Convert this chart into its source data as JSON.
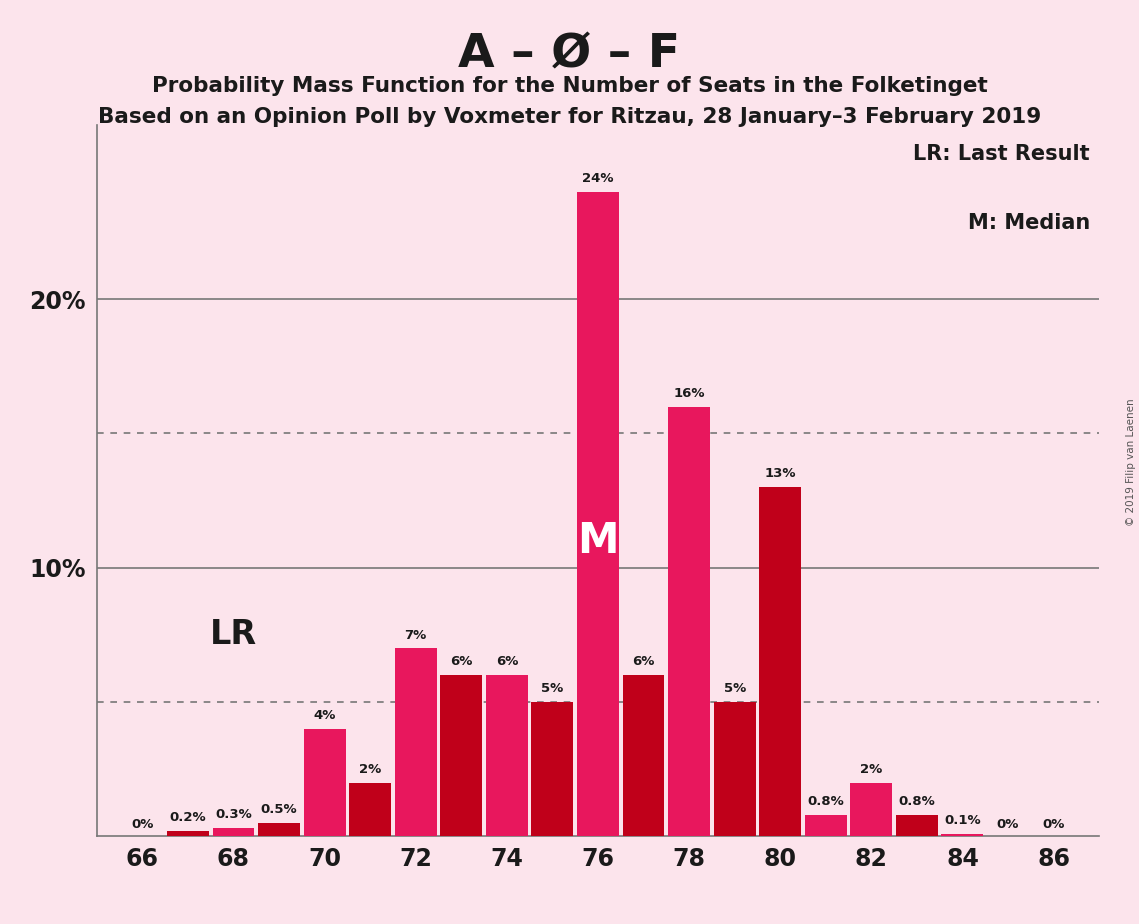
{
  "bars": [
    {
      "seat": 66,
      "prob": 0.0,
      "label": "0%",
      "color": "#e8175d"
    },
    {
      "seat": 67,
      "prob": 0.2,
      "label": "0.2%",
      "color": "#c0001a"
    },
    {
      "seat": 68,
      "prob": 0.3,
      "label": "0.3%",
      "color": "#e8175d"
    },
    {
      "seat": 69,
      "prob": 0.5,
      "label": "0.5%",
      "color": "#c0001a"
    },
    {
      "seat": 70,
      "prob": 4.0,
      "label": "4%",
      "color": "#e8175d"
    },
    {
      "seat": 71,
      "prob": 2.0,
      "label": "2%",
      "color": "#c0001a"
    },
    {
      "seat": 72,
      "prob": 7.0,
      "label": "7%",
      "color": "#e8175d"
    },
    {
      "seat": 73,
      "prob": 6.0,
      "label": "6%",
      "color": "#c0001a"
    },
    {
      "seat": 74,
      "prob": 6.0,
      "label": "6%",
      "color": "#e8175d"
    },
    {
      "seat": 75,
      "prob": 5.0,
      "label": "5%",
      "color": "#c0001a"
    },
    {
      "seat": 76,
      "prob": 24.0,
      "label": "24%",
      "color": "#e8175d"
    },
    {
      "seat": 77,
      "prob": 6.0,
      "label": "6%",
      "color": "#c0001a"
    },
    {
      "seat": 78,
      "prob": 16.0,
      "label": "16%",
      "color": "#e8175d"
    },
    {
      "seat": 79,
      "prob": 5.0,
      "label": "5%",
      "color": "#c0001a"
    },
    {
      "seat": 80,
      "prob": 13.0,
      "label": "13%",
      "color": "#c0001a"
    },
    {
      "seat": 81,
      "prob": 0.8,
      "label": "0.8%",
      "color": "#e8175d"
    },
    {
      "seat": 82,
      "prob": 2.0,
      "label": "2%",
      "color": "#e8175d"
    },
    {
      "seat": 83,
      "prob": 0.8,
      "label": "0.8%",
      "color": "#c0001a"
    },
    {
      "seat": 84,
      "prob": 0.1,
      "label": "0.1%",
      "color": "#e8175d"
    },
    {
      "seat": 85,
      "prob": 0.0,
      "label": "0%",
      "color": "#c0001a"
    },
    {
      "seat": 86,
      "prob": 0.0,
      "label": "0%",
      "color": "#e8175d"
    }
  ],
  "seat_labels": [
    66,
    68,
    70,
    72,
    74,
    76,
    78,
    80,
    82,
    84,
    86
  ],
  "median_seat": 76,
  "title_main": "A – Ø – F",
  "title_sub1": "Probability Mass Function for the Number of Seats in the Folketinget",
  "title_sub2": "Based on an Opinion Poll by Voxmeter for Ritzau, 28 January–3 February 2019",
  "legend_lr": "LR: Last Result",
  "legend_m": "M: Median",
  "watermark": "© 2019 Filip van Laenen",
  "background_color": "#fce4ec",
  "text_color": "#1a1a1a",
  "grid_color": "#777777",
  "ylim_max": 26.5,
  "bar_width": 0.92
}
